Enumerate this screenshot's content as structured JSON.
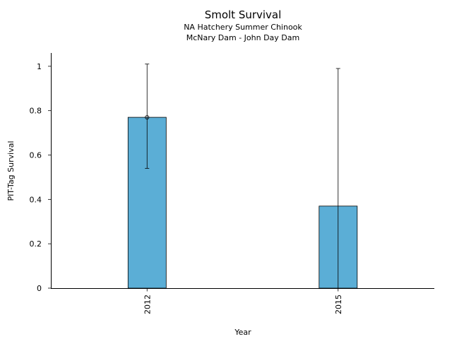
{
  "chart_data": {
    "type": "bar",
    "title": "Smolt Survival",
    "subtitle_lines": [
      "NA Hatchery Summer Chinook",
      "McNary Dam - John Day Dam"
    ],
    "xlabel": "Year",
    "ylabel": "PIT-Tag Survival",
    "categories": [
      "2012",
      "2015"
    ],
    "values": [
      0.77,
      0.37
    ],
    "error_low": [
      0.54,
      0.0
    ],
    "error_high": [
      1.01,
      0.99
    ],
    "point_markers": [
      0.77,
      null
    ],
    "ylim": [
      0,
      1.06
    ],
    "yticks": [
      0,
      0.2,
      0.4,
      0.6,
      0.8,
      1
    ],
    "ytick_labels": [
      "0",
      "0.2",
      "0.4",
      "0.6",
      "0.8",
      "1"
    ],
    "grid": false,
    "bar_color": "#5BAED6",
    "edge_color": "#000000"
  }
}
